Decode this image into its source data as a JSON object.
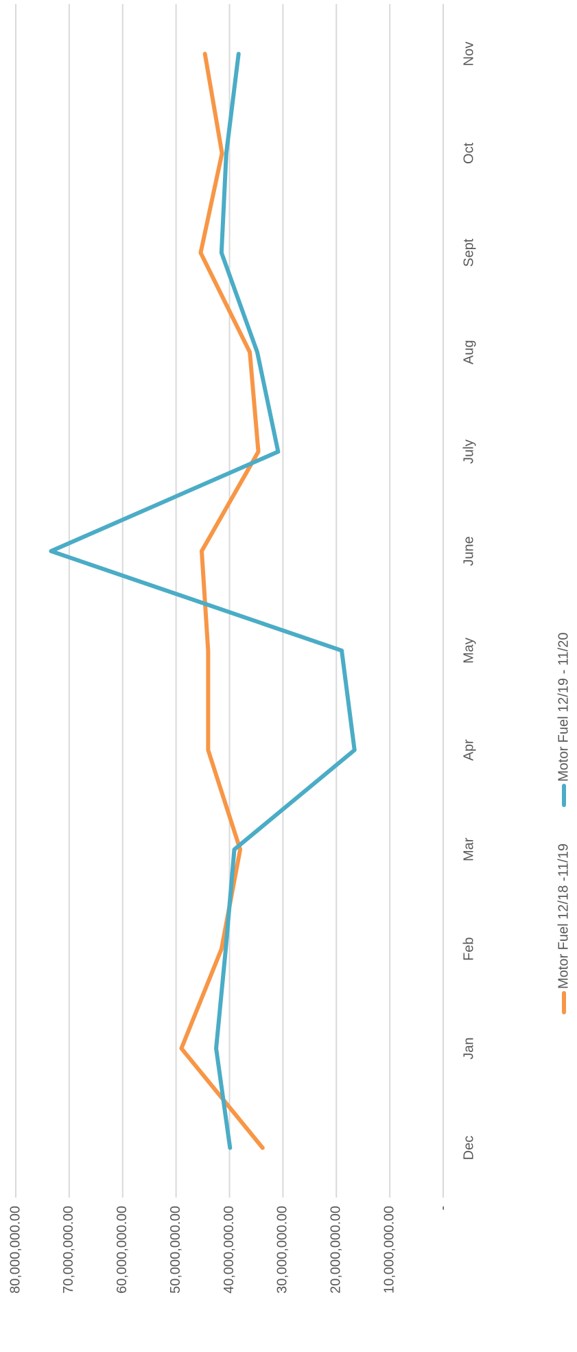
{
  "chart_data": {
    "type": "line",
    "categories": [
      "Dec",
      "Jan",
      "Feb",
      "Mar",
      "Apr",
      "May",
      "June",
      "July",
      "Aug",
      "Sept",
      "Oct",
      "Nov"
    ],
    "series": [
      {
        "name": "Motor Fuel 12/18 -11/19",
        "color": "#f79646",
        "values": [
          33800000.0,
          49000000.0,
          41500000.0,
          38000000.0,
          44000000.0,
          44000000.0,
          45200000.0,
          34600000.0,
          36200000.0,
          45400000.0,
          41400000.0,
          44600000.0
        ]
      },
      {
        "name": "Motor Fuel 12/19 - 11/20",
        "color": "#4bacc6",
        "values": [
          39900000.0,
          42500000.0,
          40700000.0,
          39100000.0,
          16600000.0,
          19000000.0,
          73400000.0,
          30900000.0,
          34800000.0,
          41500000.0,
          40600000.0,
          38300000.0
        ]
      }
    ],
    "ylim": [
      0,
      80000000
    ],
    "yticks": [
      {
        "value": 0,
        "label": "-"
      },
      {
        "value": 10000000,
        "label": "10,000,000.00"
      },
      {
        "value": 20000000,
        "label": "20,000,000.00"
      },
      {
        "value": 30000000,
        "label": "30,000,000.00"
      },
      {
        "value": 40000000,
        "label": "40,000,000.00"
      },
      {
        "value": 50000000,
        "label": "50,000,000.00"
      },
      {
        "value": 60000000,
        "label": "60,000,000.00"
      },
      {
        "value": 70000000,
        "label": "70,000,000.00"
      },
      {
        "value": 80000000,
        "label": "80,000,000.00"
      }
    ],
    "grid": true,
    "legend": "bottom"
  }
}
